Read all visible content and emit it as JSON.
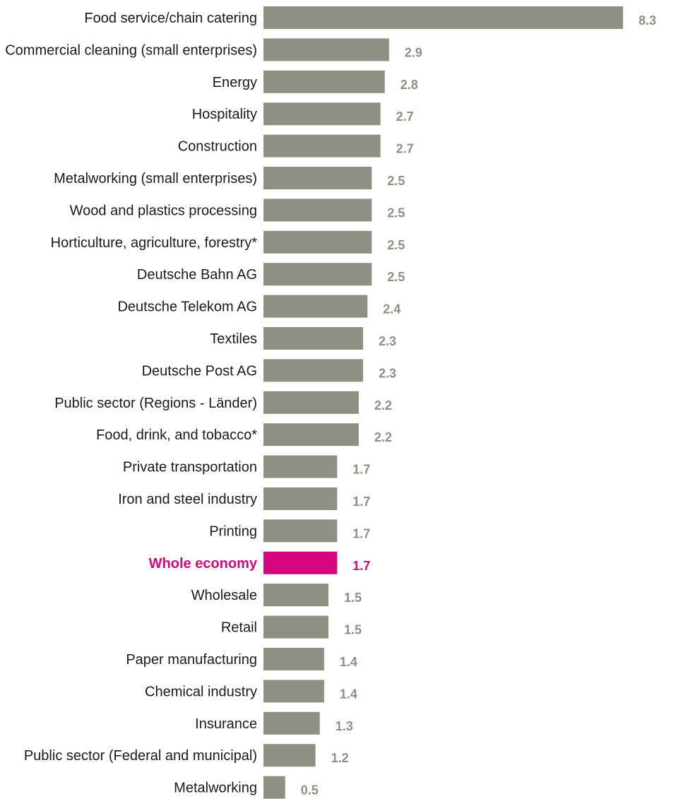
{
  "chart_data": {
    "type": "bar",
    "orientation": "horizontal",
    "title": "",
    "xlabel": "",
    "ylabel": "",
    "grid": false,
    "legend": "none",
    "xlim": [
      0,
      8.3
    ],
    "colors": {
      "bar": "#8f8f84",
      "highlight": "#d6077e",
      "value_label": "#8f8f84",
      "category_label": "#1a1a1a"
    },
    "highlight_category": "Whole economy",
    "categories": [
      "Food service/chain catering",
      "Commercial cleaning (small enterprises)",
      "Energy",
      "Hospitality",
      "Construction",
      "Metalworking (small enterprises)",
      "Wood and plastics processing",
      "Horticulture, agriculture, forestry*",
      "Deutsche Bahn AG",
      "Deutsche Telekom AG",
      "Textiles",
      "Deutsche Post AG",
      "Public sector (Regions - Länder)",
      "Food, drink, and tobacco*",
      "Private transportation",
      "Iron and steel industry",
      "Printing",
      "Whole economy",
      "Wholesale",
      "Retail",
      "Paper manufacturing",
      "Chemical industry",
      "Insurance",
      "Public sector (Federal and municipal)",
      "Metalworking"
    ],
    "values": [
      8.3,
      2.9,
      2.8,
      2.7,
      2.7,
      2.5,
      2.5,
      2.5,
      2.5,
      2.4,
      2.3,
      2.3,
      2.2,
      2.2,
      1.7,
      1.7,
      1.7,
      1.7,
      1.5,
      1.5,
      1.4,
      1.4,
      1.3,
      1.2,
      0.5
    ],
    "value_labels": [
      "8.3",
      "2.9",
      "2.8",
      "2.7",
      "2.7",
      "2.5",
      "2.5",
      "2.5",
      "2.5",
      "2.4",
      "2.3",
      "2.3",
      "2.2",
      "2.2",
      "1.7",
      "1.7",
      "1.7",
      "1.7",
      "1.5",
      "1.5",
      "1.4",
      "1.4",
      "1.3",
      "1.2",
      "0.5"
    ]
  }
}
